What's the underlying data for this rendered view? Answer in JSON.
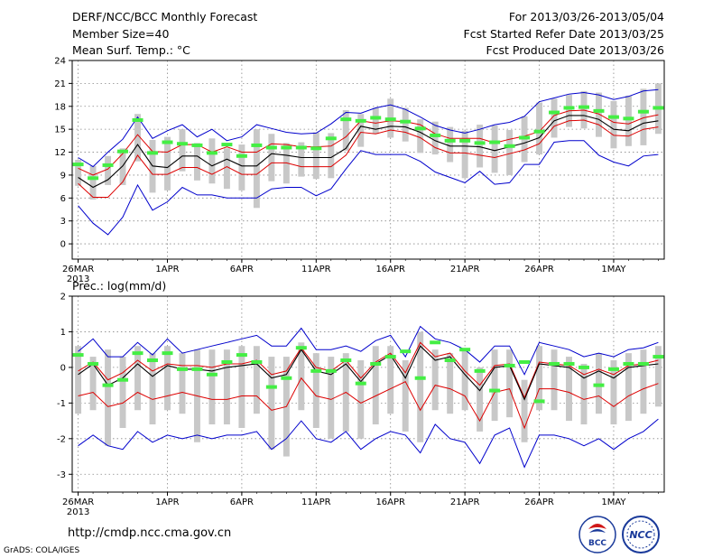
{
  "header": {
    "title": "DERF/NCC/BCC Monthly Forecast",
    "member_size": "Member Size=40",
    "variable": "Mean Surf. Temp.: °C",
    "period": "For 2013/03/26-2013/05/04",
    "start_date": "Fcst Started Refer Date 2013/03/25",
    "produced_date": "Fcst Produced Date 2013/03/26"
  },
  "footer": {
    "url": "http://cmdp.ncc.cma.gov.cn",
    "credit": "GrADS: COLA/IGES",
    "logo_bcc_text": "BCC",
    "logo_ncc_text": "NCC"
  },
  "colors": {
    "median": "#000000",
    "red_line": "#dd0000",
    "blue_line": "#0000cc",
    "green_marker": "#44ee44",
    "box": "#c8c8c8",
    "grid": "#888888"
  },
  "chart_data": [
    {
      "type": "line",
      "title": "Mean Surf. Temp.: °C",
      "x_tick_labels": [
        "26MAR",
        "1APR",
        "6APR",
        "11APR",
        "16APR",
        "21APR",
        "26APR",
        "1MAY"
      ],
      "x_year_label": "2013",
      "x_tick_days": [
        1,
        7,
        12,
        17,
        22,
        27,
        32,
        37
      ],
      "xlim": [
        1,
        40
      ],
      "ylim": [
        -2,
        24
      ],
      "yticks": [
        0,
        3,
        6,
        9,
        12,
        15,
        18,
        21,
        24
      ],
      "days": [
        1,
        2,
        3,
        4,
        5,
        6,
        7,
        8,
        9,
        10,
        11,
        12,
        13,
        14,
        15,
        16,
        17,
        18,
        19,
        20,
        21,
        22,
        23,
        24,
        25,
        26,
        27,
        28,
        29,
        30,
        31,
        32,
        33,
        34,
        35,
        36,
        37,
        38,
        39,
        40
      ],
      "series": [
        {
          "name": "median",
          "values": [
            8.7,
            7.4,
            8.4,
            10.2,
            13.0,
            10.2,
            10.0,
            11.5,
            11.5,
            10.2,
            11.1,
            10.2,
            10.2,
            11.8,
            11.6,
            11.3,
            11.3,
            11.3,
            12.5,
            15.4,
            15.0,
            15.4,
            15.3,
            14.6,
            13.5,
            12.8,
            12.8,
            12.7,
            12.2,
            12.7,
            13.2,
            13.9,
            16.1,
            16.8,
            16.8,
            16.3,
            15.0,
            14.8,
            15.8,
            16.1
          ]
        },
        {
          "name": "upper_red",
          "values": [
            9.9,
            9.0,
            9.8,
            11.8,
            14.3,
            12.1,
            12.0,
            13.0,
            13.0,
            12.0,
            12.7,
            12.0,
            12.0,
            13.1,
            13.0,
            12.7,
            12.7,
            12.8,
            14.0,
            16.1,
            15.8,
            16.1,
            16.0,
            15.6,
            14.4,
            13.8,
            13.8,
            13.8,
            13.2,
            13.7,
            14.1,
            14.7,
            16.8,
            17.4,
            17.5,
            17.0,
            15.9,
            15.7,
            16.5,
            16.9
          ]
        },
        {
          "name": "lower_red",
          "values": [
            7.9,
            6.1,
            6.1,
            8.1,
            11.6,
            9.1,
            9.1,
            10.0,
            10.0,
            9.1,
            10.1,
            9.1,
            9.1,
            10.6,
            10.6,
            10.1,
            10.1,
            10.1,
            11.6,
            14.6,
            14.4,
            14.9,
            14.6,
            13.9,
            12.6,
            11.9,
            11.9,
            11.6,
            11.3,
            11.8,
            12.3,
            13.1,
            15.4,
            16.1,
            16.2,
            15.6,
            14.2,
            14.1,
            15.0,
            15.3
          ]
        },
        {
          "name": "upper_blue",
          "values": [
            11.3,
            10.1,
            12.0,
            13.7,
            16.6,
            13.8,
            14.8,
            15.6,
            14.0,
            15.0,
            13.5,
            14.0,
            15.6,
            15.1,
            14.6,
            14.4,
            14.5,
            15.7,
            17.2,
            17.1,
            17.8,
            18.2,
            17.6,
            16.6,
            15.5,
            14.9,
            14.5,
            15.0,
            15.6,
            15.9,
            16.7,
            18.6,
            19.1,
            19.6,
            19.8,
            19.5,
            18.9,
            19.3,
            20.0,
            20.2
          ]
        },
        {
          "name": "lower_blue",
          "values": [
            5.0,
            2.7,
            1.2,
            3.5,
            7.7,
            4.4,
            5.5,
            7.4,
            6.4,
            6.4,
            6.0,
            6.0,
            6.0,
            7.2,
            7.4,
            7.4,
            6.3,
            7.2,
            9.8,
            12.2,
            11.7,
            11.7,
            11.7,
            10.8,
            9.4,
            8.7,
            8.0,
            9.5,
            7.8,
            8.0,
            10.4,
            10.4,
            13.3,
            13.5,
            13.5,
            11.6,
            10.7,
            10.2,
            11.5,
            11.7
          ]
        },
        {
          "name": "observed_green",
          "values": [
            10.4,
            8.6,
            10.3,
            12.1,
            16.2,
            11.9,
            13.3,
            13.1,
            12.9,
            11.9,
            13.0,
            11.5,
            12.9,
            12.6,
            12.6,
            12.6,
            12.5,
            13.8,
            16.3,
            16.1,
            16.5,
            16.3,
            16.0,
            15.1,
            14.2,
            13.5,
            13.5,
            13.2,
            13.3,
            12.8,
            13.9,
            14.7,
            17.2,
            17.8,
            17.9,
            17.4,
            16.6,
            16.4,
            17.3,
            17.8
          ]
        },
        {
          "name": "box_high",
          "values": [
            11.0,
            10.2,
            11.5,
            12.5,
            17.0,
            13.6,
            14.0,
            15.0,
            13.2,
            13.8,
            12.5,
            13.0,
            15.0,
            14.4,
            13.2,
            13.3,
            14.6,
            14.5,
            17.5,
            17.0,
            17.8,
            19.0,
            17.8,
            16.3,
            16.0,
            15.3,
            14.8,
            15.6,
            15.5,
            14.9,
            16.7,
            18.5,
            19.0,
            19.5,
            20.0,
            19.8,
            18.7,
            19.4,
            20.3,
            21.0
          ]
        },
        {
          "name": "box_low",
          "values": [
            7.6,
            5.8,
            7.7,
            7.7,
            10.8,
            6.7,
            7.0,
            9.5,
            8.3,
            7.9,
            7.2,
            7.0,
            4.7,
            8.2,
            7.9,
            8.8,
            8.5,
            8.6,
            12.2,
            12.7,
            14.4,
            13.9,
            13.4,
            11.9,
            11.7,
            10.7,
            8.6,
            10.0,
            9.3,
            9.0,
            10.7,
            11.7,
            13.9,
            15.3,
            15.1,
            14.0,
            12.5,
            12.8,
            12.9,
            14.4
          ]
        }
      ]
    },
    {
      "type": "line",
      "title": "Prec.: log(mm/d)",
      "x_tick_labels": [
        "26MAR",
        "1APR",
        "6APR",
        "11APR",
        "16APR",
        "21APR",
        "26APR",
        "1MAY"
      ],
      "x_year_label": "2013",
      "x_tick_days": [
        1,
        7,
        12,
        17,
        22,
        27,
        32,
        37
      ],
      "xlim": [
        1,
        40
      ],
      "ylim": [
        -3.5,
        2
      ],
      "yticks": [
        -3,
        -2,
        -1,
        0,
        1,
        2
      ],
      "days": [
        1,
        2,
        3,
        4,
        5,
        6,
        7,
        8,
        9,
        10,
        11,
        12,
        13,
        14,
        15,
        16,
        17,
        18,
        19,
        20,
        21,
        22,
        23,
        24,
        25,
        26,
        27,
        28,
        29,
        30,
        31,
        32,
        33,
        34,
        35,
        36,
        37,
        38,
        39,
        40
      ],
      "series": [
        {
          "name": "median",
          "values": [
            -0.2,
            0.1,
            -0.5,
            -0.3,
            0.1,
            -0.25,
            0.05,
            -0.05,
            -0.05,
            -0.1,
            0.0,
            0.05,
            0.1,
            -0.3,
            -0.2,
            0.5,
            -0.1,
            -0.2,
            0.1,
            -0.4,
            0.1,
            0.35,
            -0.3,
            0.6,
            0.2,
            0.3,
            -0.2,
            -0.65,
            0.0,
            0.05,
            -0.9,
            0.1,
            0.05,
            0.0,
            -0.3,
            -0.1,
            -0.3,
            0.0,
            0.05,
            0.1
          ]
        },
        {
          "name": "upper_red",
          "values": [
            -0.1,
            0.15,
            -0.35,
            -0.15,
            0.2,
            -0.1,
            0.1,
            0.05,
            0.05,
            0.0,
            0.1,
            0.1,
            0.2,
            -0.2,
            -0.1,
            0.55,
            0.0,
            -0.1,
            0.2,
            -0.3,
            0.15,
            0.4,
            -0.15,
            0.7,
            0.3,
            0.4,
            -0.1,
            -0.5,
            0.05,
            0.1,
            -0.85,
            0.15,
            0.1,
            0.05,
            -0.2,
            -0.05,
            -0.2,
            0.05,
            0.1,
            0.2
          ]
        },
        {
          "name": "lower_red",
          "values": [
            -0.8,
            -0.7,
            -1.1,
            -1.0,
            -0.7,
            -0.9,
            -0.8,
            -0.7,
            -0.8,
            -0.9,
            -0.9,
            -0.8,
            -0.8,
            -1.2,
            -1.1,
            -0.3,
            -0.8,
            -0.9,
            -0.7,
            -1.0,
            -0.8,
            -0.6,
            -0.4,
            -1.2,
            -0.5,
            -0.6,
            -0.8,
            -1.5,
            -0.7,
            -0.6,
            -1.7,
            -0.6,
            -0.6,
            -0.7,
            -0.9,
            -0.8,
            -1.1,
            -0.8,
            -0.6,
            -0.45
          ]
        },
        {
          "name": "upper_blue",
          "values": [
            0.45,
            0.8,
            0.3,
            0.3,
            0.7,
            0.35,
            0.8,
            0.4,
            0.5,
            0.6,
            0.7,
            0.8,
            0.9,
            0.6,
            0.6,
            1.1,
            0.5,
            0.5,
            0.6,
            0.45,
            0.75,
            0.9,
            0.3,
            1.15,
            0.8,
            0.7,
            0.5,
            0.15,
            0.6,
            0.6,
            -0.2,
            0.7,
            0.6,
            0.5,
            0.3,
            0.4,
            0.3,
            0.5,
            0.55,
            0.7
          ]
        },
        {
          "name": "lower_blue",
          "values": [
            -2.2,
            -1.9,
            -2.2,
            -2.3,
            -1.8,
            -2.1,
            -1.9,
            -2.0,
            -1.9,
            -2.0,
            -1.9,
            -1.9,
            -1.8,
            -2.3,
            -2.0,
            -1.5,
            -2.0,
            -2.1,
            -1.8,
            -2.3,
            -2.0,
            -1.8,
            -1.9,
            -2.4,
            -1.6,
            -2.0,
            -2.1,
            -2.7,
            -1.9,
            -1.7,
            -2.8,
            -1.9,
            -1.9,
            -2.0,
            -2.2,
            -2.0,
            -2.3,
            -2.0,
            -1.8,
            -1.45
          ]
        },
        {
          "name": "observed_green",
          "values": [
            0.35,
            0.1,
            -0.5,
            -0.35,
            0.4,
            0.2,
            0.4,
            -0.05,
            -0.05,
            -0.2,
            0.15,
            0.35,
            0.15,
            -0.55,
            -0.3,
            0.55,
            -0.1,
            -0.1,
            0.2,
            -0.45,
            0.1,
            0.3,
            0.45,
            -0.3,
            0.7,
            0.2,
            0.5,
            -0.1,
            -0.65,
            0.05,
            0.15,
            -0.95,
            0.1,
            0.1,
            0.0,
            -0.5,
            -0.05,
            0.1,
            0.1,
            0.3
          ]
        },
        {
          "name": "box_high",
          "values": [
            0.6,
            0.3,
            0.5,
            0.3,
            0.6,
            0.4,
            0.6,
            0.4,
            0.5,
            0.5,
            0.5,
            0.6,
            0.6,
            0.3,
            0.3,
            0.7,
            0.4,
            0.3,
            0.4,
            0.2,
            0.6,
            0.6,
            0.2,
            1.0,
            0.5,
            0.4,
            0.5,
            0.0,
            0.5,
            0.5,
            -0.35,
            0.6,
            0.5,
            0.3,
            0.1,
            0.4,
            0.2,
            0.4,
            0.5,
            0.6
          ]
        },
        {
          "name": "box_low",
          "values": [
            -1.3,
            -1.2,
            -2.2,
            -1.7,
            -1.2,
            -1.6,
            -1.2,
            -1.3,
            -2.1,
            -1.6,
            -1.6,
            -1.7,
            -1.3,
            -2.3,
            -2.5,
            -1.2,
            -1.7,
            -2.0,
            -1.8,
            -2.0,
            -1.6,
            -1.3,
            -1.8,
            -2.1,
            -1.2,
            -1.3,
            -1.2,
            -1.8,
            -1.5,
            -1.4,
            -2.1,
            -1.2,
            -1.2,
            -1.5,
            -1.6,
            -1.3,
            -1.6,
            -1.5,
            -1.3,
            -1.1
          ]
        }
      ]
    }
  ]
}
